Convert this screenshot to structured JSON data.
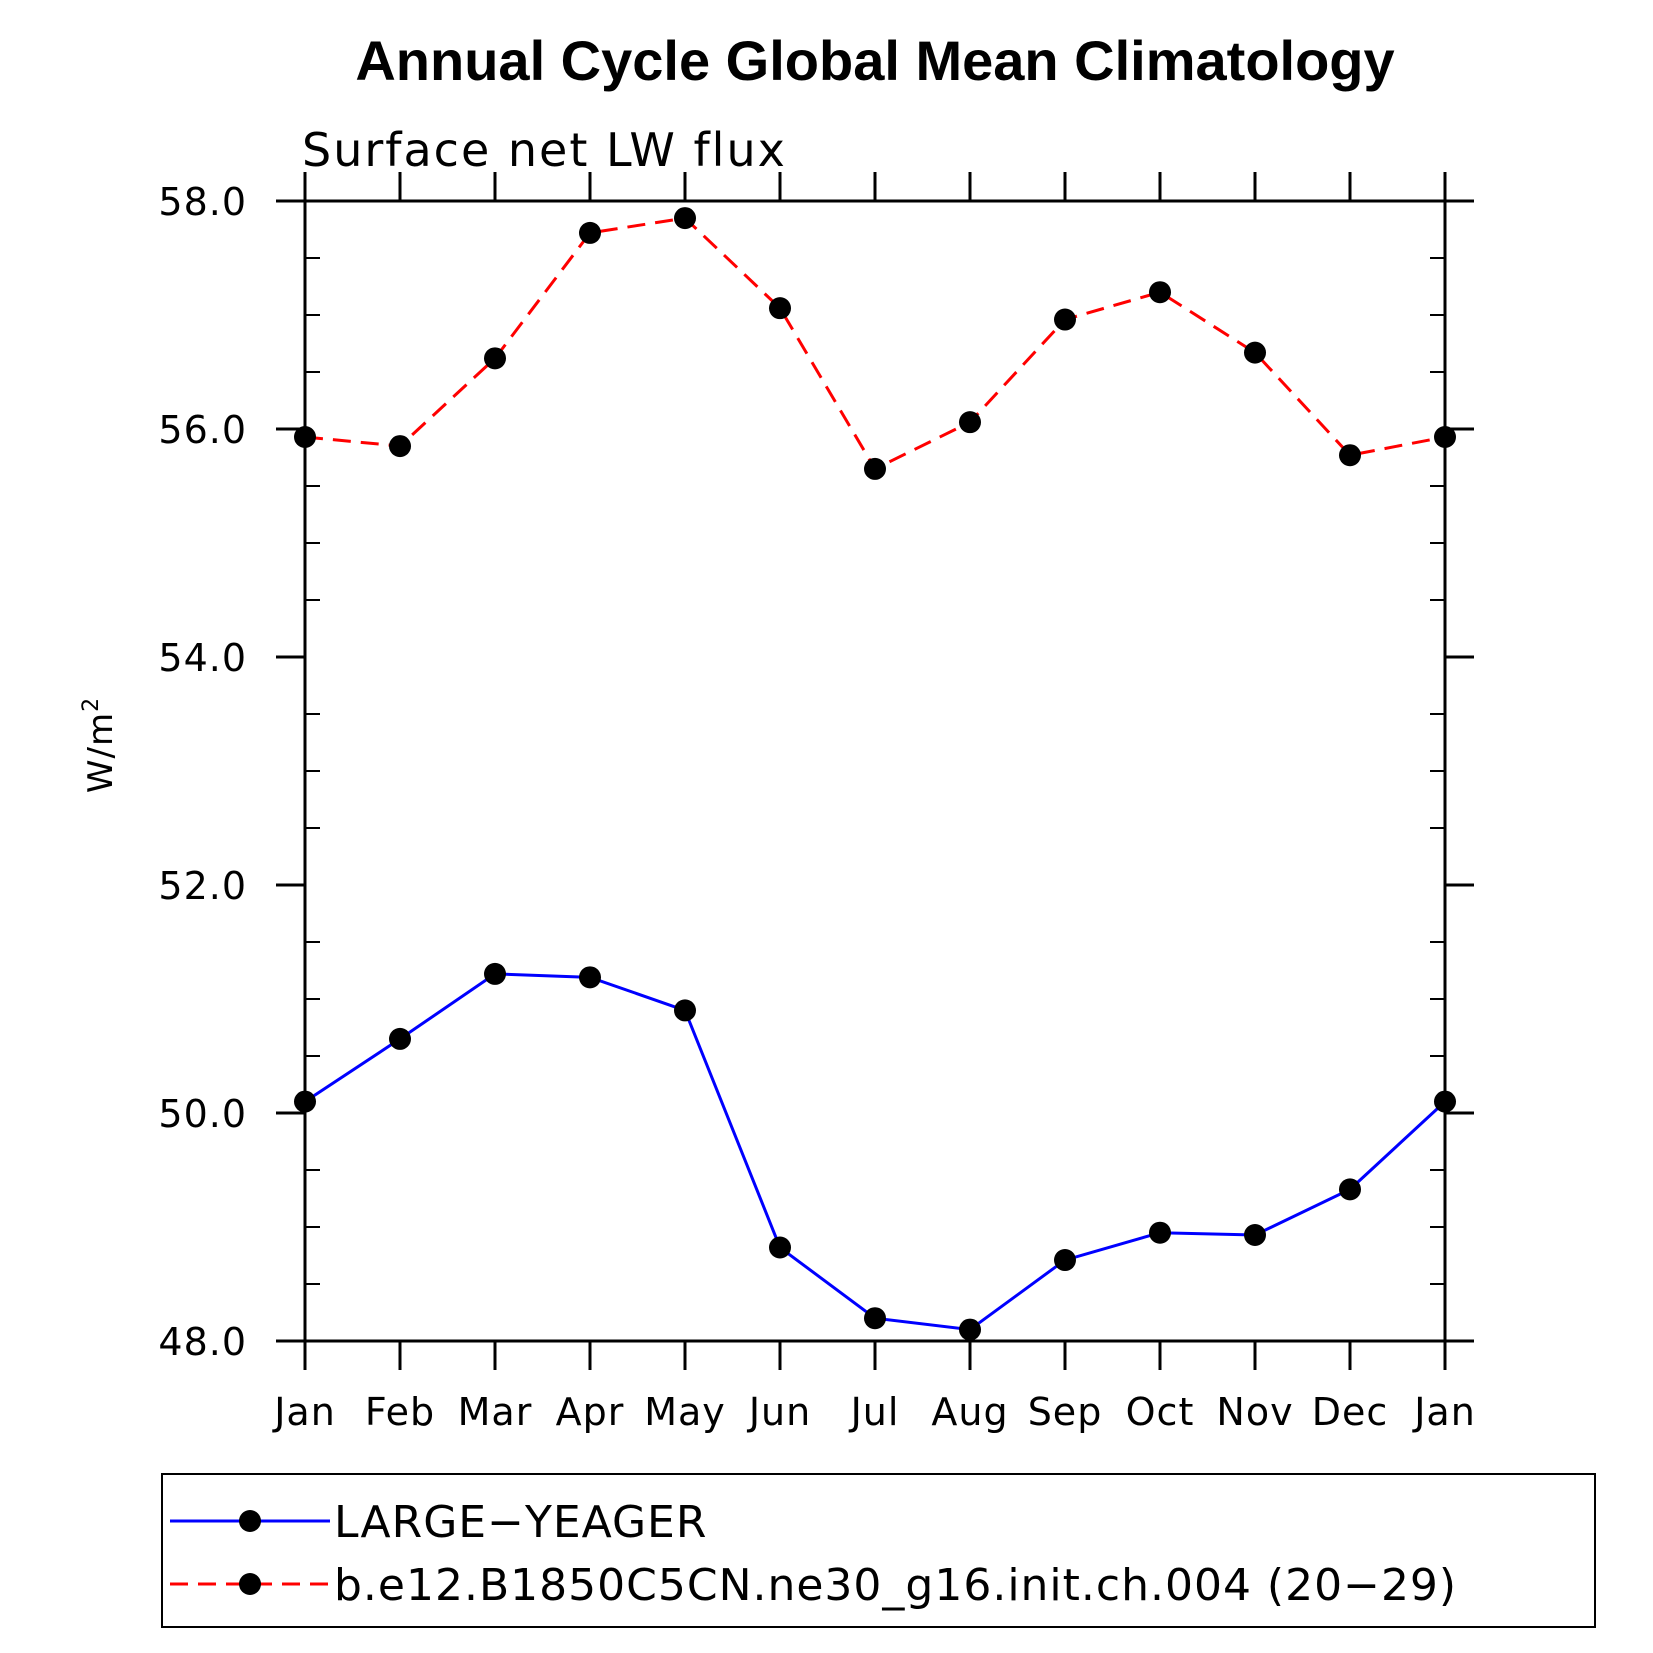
{
  "chart_data": {
    "type": "line",
    "title": "Annual Cycle Global Mean Climatology",
    "subtitle": "Surface net LW flux",
    "ylabel": "W/m",
    "ylabel_superscript": "2",
    "xlabel": "",
    "categories": [
      "Jan",
      "Feb",
      "Mar",
      "Apr",
      "May",
      "Jun",
      "Jul",
      "Aug",
      "Sep",
      "Oct",
      "Nov",
      "Dec",
      "Jan"
    ],
    "ylim": [
      48.0,
      58.0
    ],
    "yticks": [
      "48.0",
      "50.0",
      "52.0",
      "54.0",
      "56.0",
      "58.0"
    ],
    "grid": false,
    "legend_position": "bottom",
    "series": [
      {
        "name": "LARGE−YEAGER",
        "color": "#0000ff",
        "dash": "solid",
        "marker": "filled-circle",
        "values": [
          50.1,
          50.65,
          51.22,
          51.19,
          50.9,
          48.82,
          48.2,
          48.1,
          48.71,
          48.95,
          48.93,
          49.33,
          50.1
        ]
      },
      {
        "name": "b.e12.B1850C5CN.ne30_g16.init.ch.004 (20−29)",
        "color": "#ff0000",
        "dash": "dashed",
        "marker": "filled-circle",
        "values": [
          55.93,
          55.85,
          56.62,
          57.72,
          57.85,
          57.06,
          55.65,
          56.06,
          56.96,
          57.2,
          56.67,
          55.77,
          55.93
        ]
      }
    ]
  }
}
